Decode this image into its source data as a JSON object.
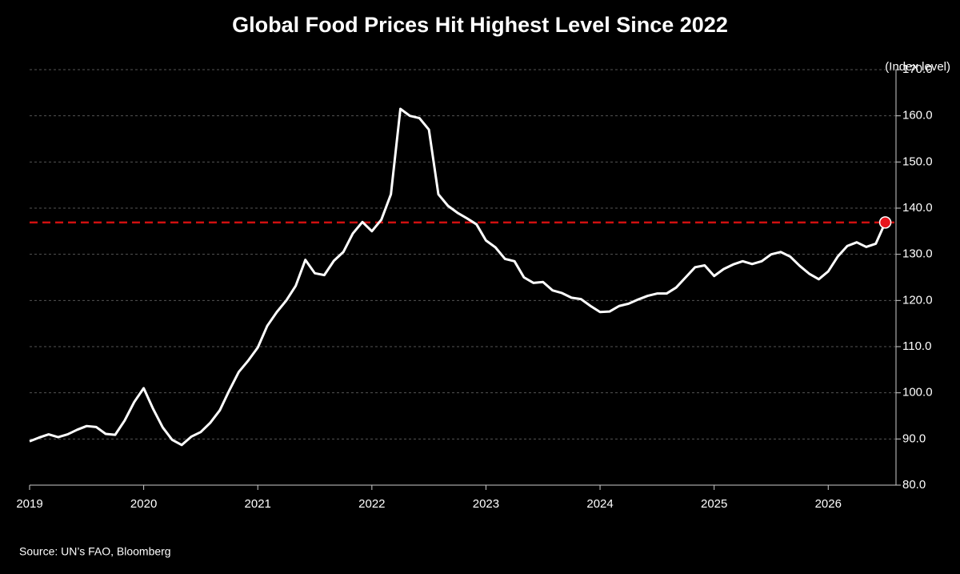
{
  "chart_data": {
    "type": "line",
    "title": "Global Food Prices Hit Highest Level Since 2022",
    "y_axis_label": "(Index level)",
    "source": "Source: UN’s FAO, Bloomberg",
    "x": [
      2019,
      2019.083,
      2019.167,
      2019.25,
      2019.333,
      2019.417,
      2019.5,
      2019.583,
      2019.667,
      2019.75,
      2019.833,
      2019.917,
      2020,
      2020.083,
      2020.167,
      2020.25,
      2020.333,
      2020.417,
      2020.5,
      2020.583,
      2020.667,
      2020.75,
      2020.833,
      2020.917,
      2021,
      2021.083,
      2021.167,
      2021.25,
      2021.333,
      2021.417,
      2021.5,
      2021.583,
      2021.667,
      2021.75,
      2021.833,
      2021.917,
      2022,
      2022.083,
      2022.167,
      2022.25,
      2022.333,
      2022.417,
      2022.5,
      2022.583,
      2022.667,
      2022.75,
      2022.833,
      2022.917,
      2023,
      2023.083,
      2023.167,
      2023.25,
      2023.333,
      2023.417,
      2023.5,
      2023.583,
      2023.667,
      2023.75,
      2023.833,
      2023.917,
      2024,
      2024.083,
      2024.167,
      2024.25,
      2024.333,
      2024.417,
      2024.5,
      2024.583,
      2024.667,
      2024.75,
      2024.833,
      2024.917,
      2025,
      2025.083,
      2025.167,
      2025.25,
      2025.333,
      2025.417,
      2025.5,
      2025.583,
      2025.667,
      2025.75,
      2025.833,
      2025.917,
      2026,
      2026.083,
      2026.167,
      2026.25,
      2026.333,
      2026.417,
      2026.5
    ],
    "values": [
      89.5,
      90.3,
      91.0,
      90.4,
      91.0,
      92.0,
      92.8,
      92.6,
      91.1,
      90.9,
      94.0,
      98.0,
      101.0,
      96.5,
      92.5,
      89.8,
      88.7,
      90.5,
      91.5,
      93.5,
      96.2,
      100.5,
      104.5,
      107.0,
      109.8,
      114.5,
      117.5,
      120.0,
      123.2,
      128.8,
      125.9,
      125.5,
      128.6,
      130.5,
      134.5,
      137.0,
      135.0,
      137.5,
      143.0,
      161.5,
      160.0,
      159.5,
      157.0,
      143.0,
      140.5,
      139.0,
      137.8,
      136.5,
      133.0,
      131.5,
      129.0,
      128.5,
      125.0,
      123.8,
      124.0,
      122.2,
      121.6,
      120.6,
      120.3,
      118.8,
      117.5,
      117.6,
      118.8,
      119.3,
      120.2,
      121.0,
      121.5,
      121.5,
      122.8,
      125.0,
      127.2,
      127.6,
      125.3,
      126.8,
      127.8,
      128.5,
      127.9,
      128.5,
      130.0,
      130.5,
      129.5,
      127.5,
      125.8,
      124.6,
      126.3,
      129.5,
      131.8,
      132.6,
      131.6,
      132.3,
      136.9
    ],
    "color": "#ffffff",
    "reference_line": {
      "value": 136.9,
      "color": "#d01010"
    },
    "marker_color": "#e8141c",
    "xlim": [
      2019,
      2026.58
    ],
    "xticks": [
      2019,
      2020,
      2021,
      2022,
      2023,
      2024,
      2025,
      2026
    ],
    "ylim": [
      80,
      170
    ],
    "yticks": [
      {
        "value": 80,
        "label": "80.0"
      },
      {
        "value": 90,
        "label": "90.0"
      },
      {
        "value": 100,
        "label": "100.0"
      },
      {
        "value": 110,
        "label": "110.0"
      },
      {
        "value": 120,
        "label": "120.0"
      },
      {
        "value": 130,
        "label": "130.0"
      },
      {
        "value": 140,
        "label": "140.0"
      },
      {
        "value": 150,
        "label": "150.0"
      },
      {
        "value": 160,
        "label": "160.0"
      },
      {
        "value": 170,
        "label": "170.0"
      }
    ],
    "grid": true
  }
}
